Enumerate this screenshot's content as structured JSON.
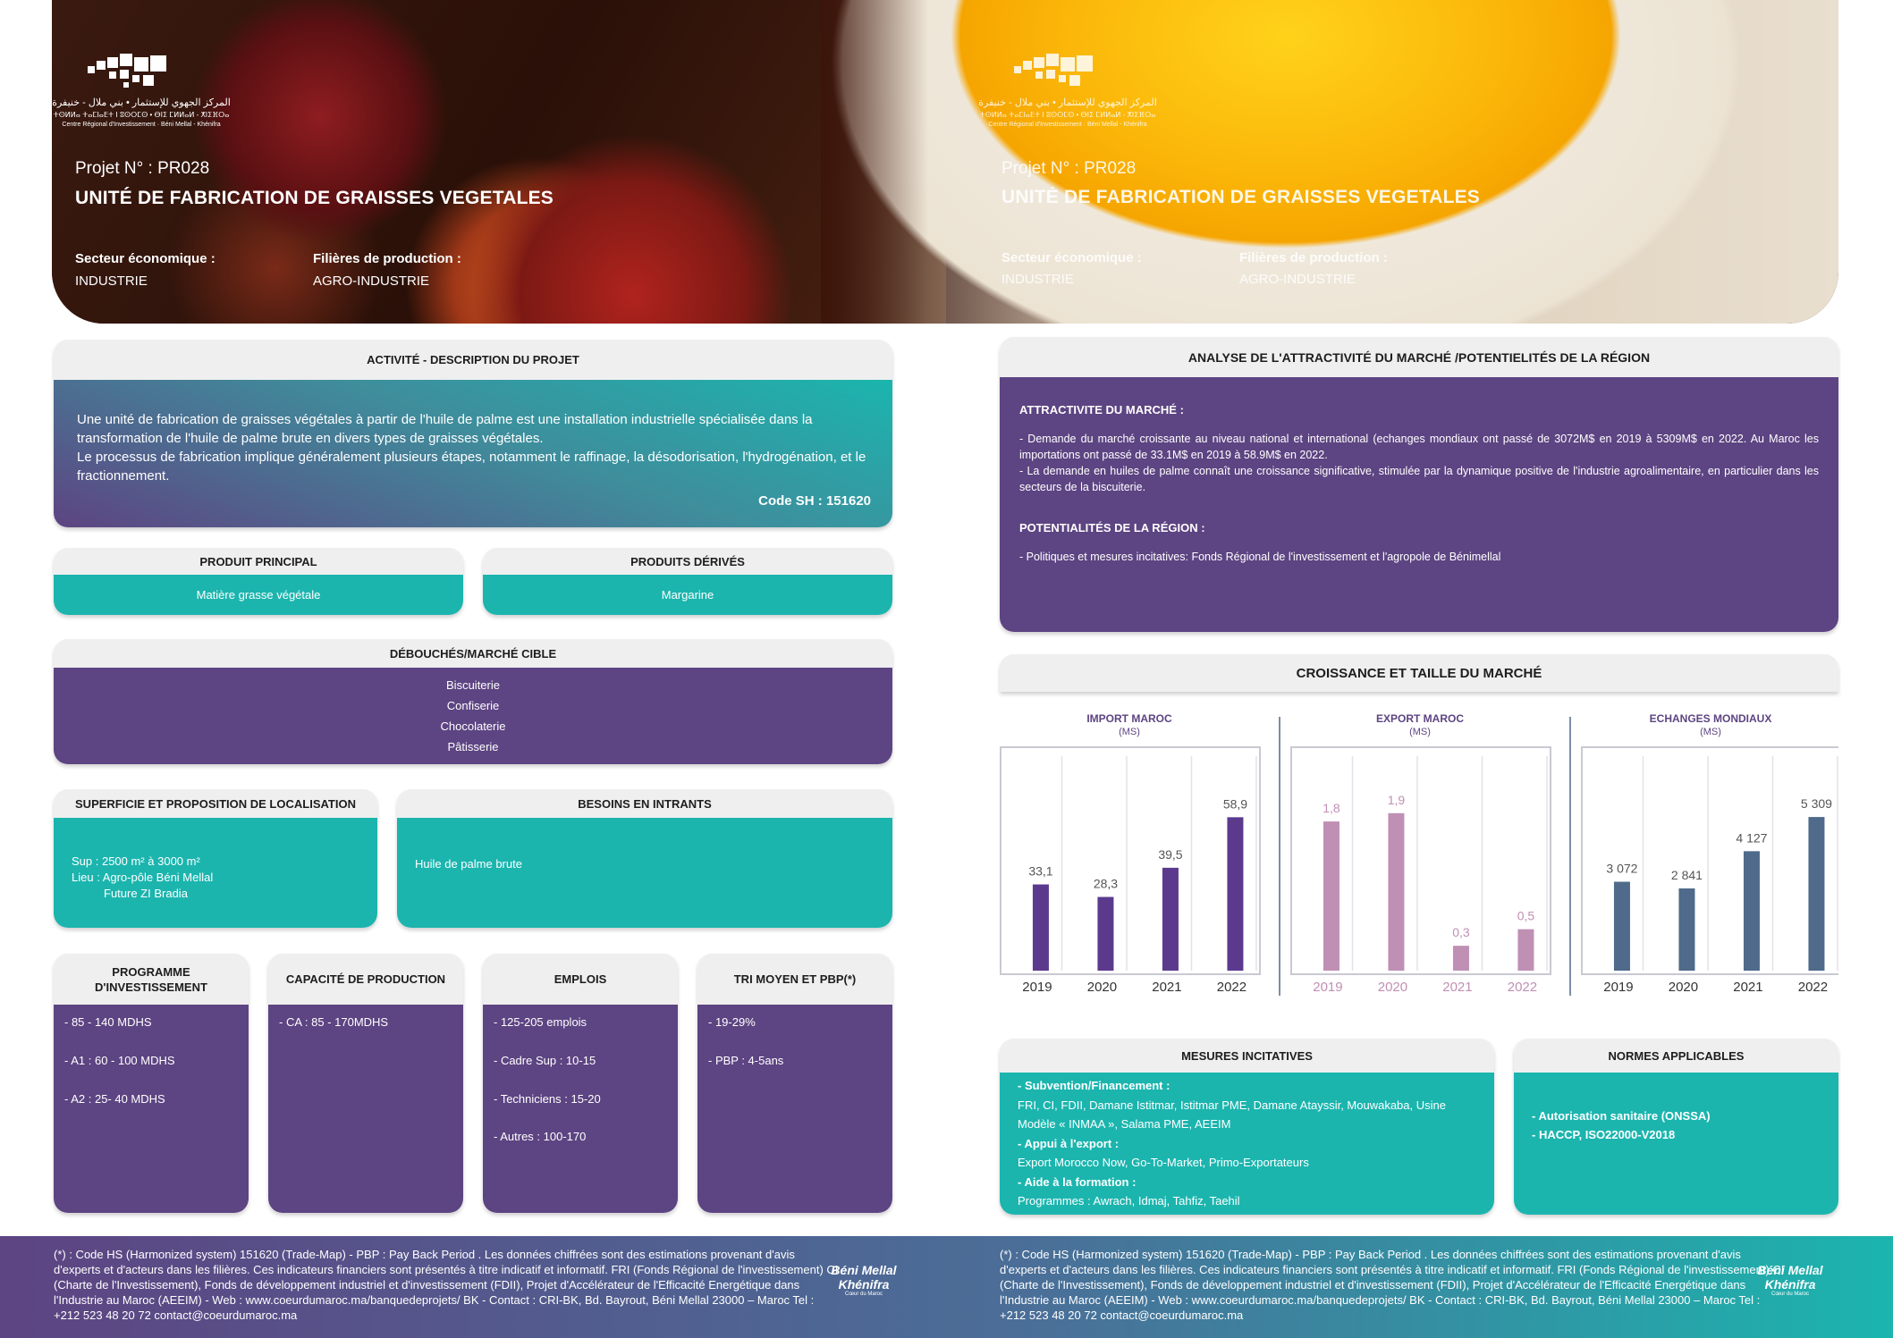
{
  "banner": {
    "logo": {
      "arabic": "المركز الجهوي للإستثمار • بني ملال - خنيفرة",
      "tifinagh": "ⵜⵙⵍⵍⴰ ⵜⴰⵎⵏⴰⴹⵜ ⵏ ⵓⵙⵔⵎⵙ • ⴱⵏⵉ ⵎⵍⵍⴰⵍ - ⵅⵏⵉⴼⵔⴰ",
      "french": "Centre Régional d'Investissement · Béni Mellal - Khénifra"
    },
    "project_number": "Projet N° :  PR028",
    "project_title": "UNITÉ DE FABRICATION DE GRAISSES VEGETALES",
    "sector_label": "Secteur économique :",
    "sector_value": "INDUSTRIE",
    "filiere_label": "Filières de production :",
    "filiere_value": "AGRO-INDUSTRIE"
  },
  "activity": {
    "header": "ACTIVITÉ - DESCRIPTION DU PROJET",
    "paragraph1": "Une unité de fabrication de graisses végétales à partir de l'huile de palme est une installation industrielle spécialisée dans la transformation de l'huile de palme brute en divers types de graisses végétales.",
    "paragraph2": "Le processus de fabrication implique généralement plusieurs étapes, notamment le raffinage, la désodorisation, l'hydrogénation, et le fractionnement.",
    "code_sh": "Code SH : 151620"
  },
  "products": {
    "main_header": "PRODUIT PRINCIPAL",
    "main_value": "Matière grasse végétale",
    "derived_header": "PRODUITS DÉRIVÉS",
    "derived_value": "Margarine"
  },
  "market_target": {
    "header": "DÉBOUCHÉS/MARCHÉ CIBLE",
    "items": [
      "Biscuiterie",
      "Confiserie",
      "Chocolaterie",
      "Pâtisserie"
    ]
  },
  "location": {
    "header": "SUPERFICIE ET PROPOSITION DE LOCALISATION",
    "line1": "Sup : 2500 m² à 3000 m²",
    "line2": "Lieu : Agro-pôle Béni Mellal",
    "line3": "Future ZI Bradia"
  },
  "inputs": {
    "header": "BESOINS EN INTRANTS",
    "value": "Huile de palme brute"
  },
  "investment": {
    "header_line1": "PROGRAMME",
    "header_line2": "D'INVESTISSEMENT",
    "items": [
      "- 85 - 140 MDHS",
      "- A1 : 60 - 100 MDHS",
      "- A2 : 25- 40 MDHS"
    ]
  },
  "capacity": {
    "header": "CAPACITÉ DE PRODUCTION",
    "items": [
      "- CA : 85 - 170MDHS"
    ]
  },
  "jobs": {
    "header": "EMPLOIS",
    "items": [
      "- 125-205 emplois",
      "- Cadre Sup : 10-15",
      "- Techniciens : 15-20",
      "- Autres : 100-170"
    ]
  },
  "tri": {
    "header": "TRI MOYEN ET PBP(*)",
    "items": [
      "- 19-29%",
      "- PBP : 4-5ans"
    ]
  },
  "analysis": {
    "header": "ANALYSE DE L'ATTRACTIVITÉ DU MARCHÉ /POTENTIELITÉS DE LA RÉGION",
    "attr_title": "ATTRACTIVITE DU MARCHÉ :",
    "attr_text1": "- Demande du marché croissante au niveau national et international (echanges mondiaux ont passé de 3072M$ en 2019 à 5309M$ en 2022. Au Maroc les importations ont passé de 33.1M$ en 2019 à 58.9M$ en 2022.",
    "attr_text2": "- La demande en huiles de palme connaît une croissance significative, stimulée par la dynamique positive de l'industrie agroalimentaire, en particulier dans les secteurs de la biscuiterie.",
    "pot_title": "POTENTIALITÉS DE LA RÉGION :",
    "pot_text": "- Politiques et mesures incitatives: Fonds Régional de l'investissement et l'agropole de Bénimellal"
  },
  "growth": {
    "header": "CROISSANCE ET TAILLE DU MARCHÉ"
  },
  "chart_data": [
    {
      "type": "bar",
      "title": "IMPORT MAROC",
      "ylabel": "(MS)",
      "categories": [
        "2019",
        "2020",
        "2021",
        "2022"
      ],
      "values": [
        33.1,
        28.3,
        39.5,
        58.9
      ],
      "labels": [
        "33,1",
        "28,3",
        "39,5",
        "58,9"
      ],
      "color": "#5b3a8e",
      "ylim": [
        0,
        70
      ]
    },
    {
      "type": "bar",
      "title": "EXPORT MAROC",
      "ylabel": "(MS)",
      "categories": [
        "2019",
        "2020",
        "2021",
        "2022"
      ],
      "values": [
        1.8,
        1.9,
        0.3,
        0.5
      ],
      "labels": [
        "1,8",
        "1,9",
        "0,3",
        "0,5"
      ],
      "color": "#c08fb4",
      "ylim": [
        0,
        2.2
      ]
    },
    {
      "type": "bar",
      "title": "ECHANGES MONDIAUX",
      "ylabel": "(MS)",
      "categories": [
        "2019",
        "2020",
        "2021",
        "2022"
      ],
      "values": [
        3072,
        2841,
        4127,
        5309
      ],
      "labels": [
        "3 072",
        "2 841",
        "4 127",
        "5 309"
      ],
      "color": "#4f6a8a",
      "ylim": [
        0,
        6300
      ]
    }
  ],
  "incentives": {
    "header": "MESURES INCITATIVES",
    "subsidy_title": "- Subvention/Financement :",
    "subsidy_text": "FRI, CI, FDII, Damane Istitmar, Istitmar PME, Damane Atayssir, Mouwakaba, Usine Modèle « INMAA », Salama PME, AEEIM",
    "export_title": "- Appui à l'export :",
    "export_text": "Export Morocco Now, Go-To-Market, Primo-Exportateurs",
    "training_title": "- Aide à la formation :",
    "training_text": "Programmes :  Awrach, Idmaj, Tahfiz, Taehil"
  },
  "norms": {
    "header": "NORMES APPLICABLES",
    "items": [
      "- Autorisation sanitaire (ONSSA)",
      "- HACCP, ISO22000-V2018"
    ]
  },
  "footer": {
    "text": "(*) : Code HS (Harmonized system) 151620 (Trade-Map) - PBP : Pay Back Period . Les données chiffrées sont des estimations provenant d'avis d'experts et d'acteurs dans les filières. Ces indicateurs financiers sont présentés à titre indicatif et informatif. FRI (Fonds Régional de l'investissement) CI (Charte de l'Investissement), Fonds de développement industriel et d'investissement (FDII), Projet d'Accélérateur de l'Efficacité Energétique dans l'Industrie au Maroc (AEEIM) - Web : www.coeurdumaroc.ma/banquedeprojets/ BK - Contact : CRI-BK, Bd. Bayrout, Béni Mellal 23000 – Maroc Tel : +212 523 48 20 72 contact@coeurdumaroc.ma",
    "logo_line1": "Béni Mellal",
    "logo_line2": "Khénifra",
    "logo_line3": "Cœur du Maroc"
  }
}
